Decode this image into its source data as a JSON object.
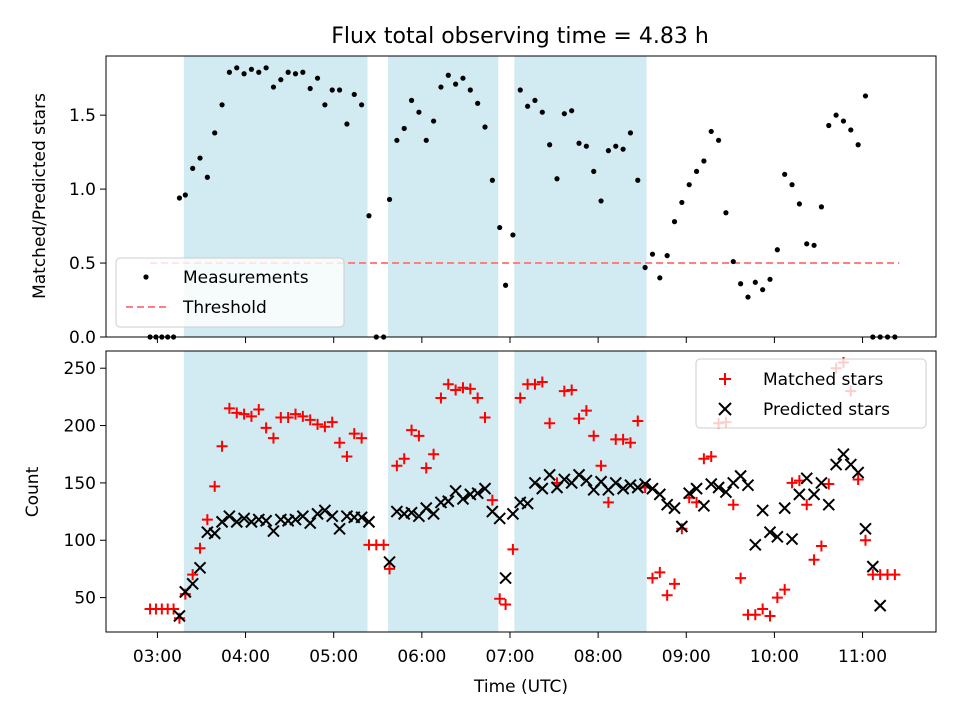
{
  "chart_data": [
    {
      "type": "scatter",
      "title": "Flux total observing time = 4.83 h",
      "xlabel": "",
      "ylabel": "Matched/Predicted stars",
      "ylim": [
        0,
        1.9
      ],
      "yticks": [
        0.0,
        0.5,
        1.0,
        1.5
      ],
      "ytick_labels": [
        "0.0",
        "0.5",
        "1.0",
        "1.5"
      ],
      "legend": {
        "placement": "lower-left",
        "entries": [
          "Measurements",
          "Threshold"
        ]
      },
      "threshold": {
        "name": "Threshold",
        "value": 0.5,
        "x_start": "02:55",
        "x_end": "11:25",
        "color": "#ff7f7f"
      },
      "series": [
        {
          "name": "Measurements",
          "color": "#000000",
          "x": [
            "02:55",
            "02:59",
            "03:03",
            "03:07",
            "03:11",
            "03:15",
            "03:19",
            "03:24",
            "03:29",
            "03:34",
            "03:39",
            "03:44",
            "03:49",
            "03:54",
            "03:59",
            "04:04",
            "04:09",
            "04:14",
            "04:19",
            "04:24",
            "04:29",
            "04:34",
            "04:39",
            "04:44",
            "04:49",
            "04:54",
            "04:59",
            "05:04",
            "05:09",
            "05:14",
            "05:19",
            "05:24",
            "05:29",
            "05:34",
            "05:38",
            "05:43",
            "05:48",
            "05:53",
            "05:58",
            "06:03",
            "06:08",
            "06:13",
            "06:18",
            "06:23",
            "06:28",
            "06:33",
            "06:38",
            "06:43",
            "06:48",
            "06:53",
            "06:57",
            "07:02",
            "07:07",
            "07:12",
            "07:17",
            "07:22",
            "07:27",
            "07:32",
            "07:37",
            "07:42",
            "07:47",
            "07:52",
            "07:57",
            "08:02",
            "08:07",
            "08:12",
            "08:17",
            "08:22",
            "08:27",
            "08:32",
            "08:37",
            "08:42",
            "08:47",
            "08:52",
            "08:57",
            "09:02",
            "09:07",
            "09:12",
            "09:17",
            "09:22",
            "09:27",
            "09:32",
            "09:37",
            "09:42",
            "09:47",
            "09:52",
            "09:57",
            "10:02",
            "10:07",
            "10:12",
            "10:17",
            "10:22",
            "10:27",
            "10:32",
            "10:37",
            "10:42",
            "10:47",
            "10:52",
            "10:57",
            "11:02",
            "11:07",
            "11:12",
            "11:17",
            "11:22"
          ],
          "y": [
            0.0,
            0.0,
            0.0,
            0.0,
            0.0,
            0.94,
            0.96,
            1.14,
            1.21,
            1.08,
            1.38,
            1.57,
            1.79,
            1.82,
            1.78,
            1.81,
            1.79,
            1.82,
            1.69,
            1.74,
            1.79,
            1.78,
            1.79,
            1.68,
            1.75,
            1.57,
            1.67,
            1.67,
            1.44,
            1.64,
            1.57,
            0.82,
            0.0,
            0.0,
            0.93,
            1.33,
            1.41,
            1.6,
            1.52,
            1.33,
            1.46,
            1.69,
            1.77,
            1.71,
            1.75,
            1.67,
            1.58,
            1.42,
            1.06,
            0.74,
            0.35,
            0.69,
            1.67,
            1.56,
            1.6,
            1.52,
            1.3,
            1.07,
            1.51,
            1.53,
            1.31,
            1.29,
            1.12,
            0.92,
            1.26,
            1.29,
            1.27,
            1.38,
            1.06,
            0.47,
            0.56,
            0.4,
            0.55,
            0.78,
            0.91,
            1.03,
            1.12,
            1.19,
            1.39,
            1.33,
            0.84,
            0.51,
            0.36,
            0.27,
            0.37,
            0.32,
            0.39,
            0.59,
            1.1,
            1.03,
            0.9,
            0.63,
            0.62,
            0.88,
            1.43,
            1.5,
            1.46,
            1.4,
            1.3,
            1.63,
            0.0,
            0.0,
            0.0,
            0.0
          ]
        }
      ],
      "shaded_intervals": [
        [
          "03:18",
          "05:23"
        ],
        [
          "05:37",
          "06:52"
        ],
        [
          "07:03",
          "08:33"
        ]
      ],
      "shade_color": "#add8e6"
    },
    {
      "type": "scatter",
      "title": "",
      "xlabel": "Time (UTC)",
      "ylabel": "Count",
      "xlim": [
        "02:25",
        "11:50"
      ],
      "ylim": [
        20,
        265
      ],
      "yticks": [
        50,
        100,
        150,
        200,
        250
      ],
      "xticks": [
        "03:00",
        "04:00",
        "05:00",
        "06:00",
        "07:00",
        "08:00",
        "09:00",
        "10:00",
        "11:00"
      ],
      "legend": {
        "placement": "top-right",
        "entries": [
          "Matched stars",
          "Predicted stars"
        ]
      },
      "series": [
        {
          "name": "Matched stars",
          "marker": "plus",
          "color": "#ff0000",
          "x": [
            "02:55",
            "02:59",
            "03:03",
            "03:07",
            "03:11",
            "03:15",
            "03:19",
            "03:24",
            "03:29",
            "03:34",
            "03:39",
            "03:44",
            "03:49",
            "03:54",
            "03:59",
            "04:04",
            "04:09",
            "04:14",
            "04:19",
            "04:24",
            "04:29",
            "04:34",
            "04:39",
            "04:44",
            "04:49",
            "04:54",
            "04:59",
            "05:04",
            "05:09",
            "05:14",
            "05:19",
            "05:24",
            "05:29",
            "05:34",
            "05:38",
            "05:43",
            "05:48",
            "05:53",
            "05:58",
            "06:03",
            "06:08",
            "06:13",
            "06:18",
            "06:23",
            "06:28",
            "06:33",
            "06:38",
            "06:43",
            "06:48",
            "06:53",
            "06:57",
            "07:02",
            "07:07",
            "07:12",
            "07:17",
            "07:22",
            "07:27",
            "07:32",
            "07:37",
            "07:42",
            "07:47",
            "07:52",
            "07:57",
            "08:02",
            "08:07",
            "08:12",
            "08:17",
            "08:22",
            "08:27",
            "08:32",
            "08:37",
            "08:42",
            "08:47",
            "08:52",
            "08:57",
            "09:02",
            "09:07",
            "09:12",
            "09:17",
            "09:22",
            "09:27",
            "09:32",
            "09:37",
            "09:42",
            "09:47",
            "09:52",
            "09:57",
            "10:02",
            "10:07",
            "10:12",
            "10:17",
            "10:22",
            "10:27",
            "10:32",
            "10:37",
            "10:42",
            "10:47",
            "10:52",
            "10:57",
            "11:02",
            "11:07",
            "11:12",
            "11:17",
            "11:22"
          ],
          "y": [
            40,
            40,
            40,
            40,
            40,
            32,
            53,
            70,
            93,
            118,
            147,
            182,
            215,
            211,
            210,
            208,
            214,
            198,
            189,
            207,
            207,
            210,
            208,
            205,
            201,
            199,
            203,
            185,
            173,
            193,
            189,
            96,
            96,
            96,
            75,
            165,
            171,
            196,
            191,
            163,
            175,
            224,
            236,
            231,
            233,
            232,
            224,
            207,
            135,
            49,
            44,
            92,
            224,
            236,
            236,
            238,
            202,
            150,
            230,
            231,
            206,
            213,
            191,
            165,
            133,
            188,
            188,
            185,
            204,
            146,
            67,
            72,
            52,
            62,
            110,
            137,
            133,
            171,
            173,
            202,
            203,
            131,
            67,
            35,
            35,
            40,
            34,
            50,
            57,
            150,
            152,
            131,
            83,
            95,
            149,
            250,
            255,
            230,
            153,
            100,
            70,
            70,
            70,
            70
          ]
        },
        {
          "name": "Predicted stars",
          "marker": "x",
          "color": "#000000",
          "x": [
            "03:15",
            "03:19",
            "03:24",
            "03:29",
            "03:34",
            "03:39",
            "03:44",
            "03:49",
            "03:54",
            "03:59",
            "04:04",
            "04:09",
            "04:14",
            "04:19",
            "04:24",
            "04:29",
            "04:34",
            "04:39",
            "04:44",
            "04:49",
            "04:54",
            "04:59",
            "05:04",
            "05:09",
            "05:14",
            "05:19",
            "05:24",
            "05:38",
            "05:43",
            "05:48",
            "05:53",
            "05:58",
            "06:03",
            "06:08",
            "06:13",
            "06:18",
            "06:23",
            "06:28",
            "06:33",
            "06:38",
            "06:43",
            "06:48",
            "06:53",
            "06:57",
            "07:02",
            "07:07",
            "07:12",
            "07:17",
            "07:22",
            "07:27",
            "07:32",
            "07:37",
            "07:42",
            "07:47",
            "07:52",
            "07:57",
            "08:02",
            "08:07",
            "08:12",
            "08:17",
            "08:22",
            "08:27",
            "08:32",
            "08:37",
            "08:42",
            "08:47",
            "08:52",
            "08:57",
            "09:02",
            "09:07",
            "09:12",
            "09:17",
            "09:22",
            "09:27",
            "09:32",
            "09:37",
            "09:42",
            "09:47",
            "09:52",
            "09:57",
            "10:02",
            "10:07",
            "10:12",
            "10:17",
            "10:22",
            "10:27",
            "10:32",
            "10:37",
            "10:42",
            "10:47",
            "10:52",
            "10:57",
            "11:02",
            "11:07",
            "11:12"
          ],
          "y": [
            34,
            55,
            62,
            76,
            107,
            106,
            116,
            121,
            116,
            119,
            116,
            118,
            117,
            108,
            118,
            117,
            118,
            121,
            115,
            123,
            126,
            121,
            110,
            121,
            120,
            120,
            116,
            81,
            125,
            123,
            124,
            121,
            128,
            123,
            133,
            134,
            143,
            136,
            140,
            141,
            145,
            125,
            119,
            67,
            123,
            133,
            132,
            150,
            145,
            157,
            146,
            153,
            150,
            157,
            152,
            144,
            151,
            144,
            150,
            145,
            148,
            146,
            149,
            145,
            140,
            131,
            128,
            112,
            141,
            145,
            130,
            149,
            146,
            142,
            150,
            156,
            148,
            96,
            126,
            107,
            103,
            128,
            101,
            140,
            154,
            140,
            150,
            131,
            166,
            175,
            166,
            159,
            110,
            77,
            43
          ]
        }
      ],
      "shaded_intervals": [
        [
          "03:18",
          "05:23"
        ],
        [
          "05:37",
          "06:52"
        ],
        [
          "07:03",
          "08:33"
        ]
      ],
      "shade_color": "#add8e6"
    }
  ]
}
